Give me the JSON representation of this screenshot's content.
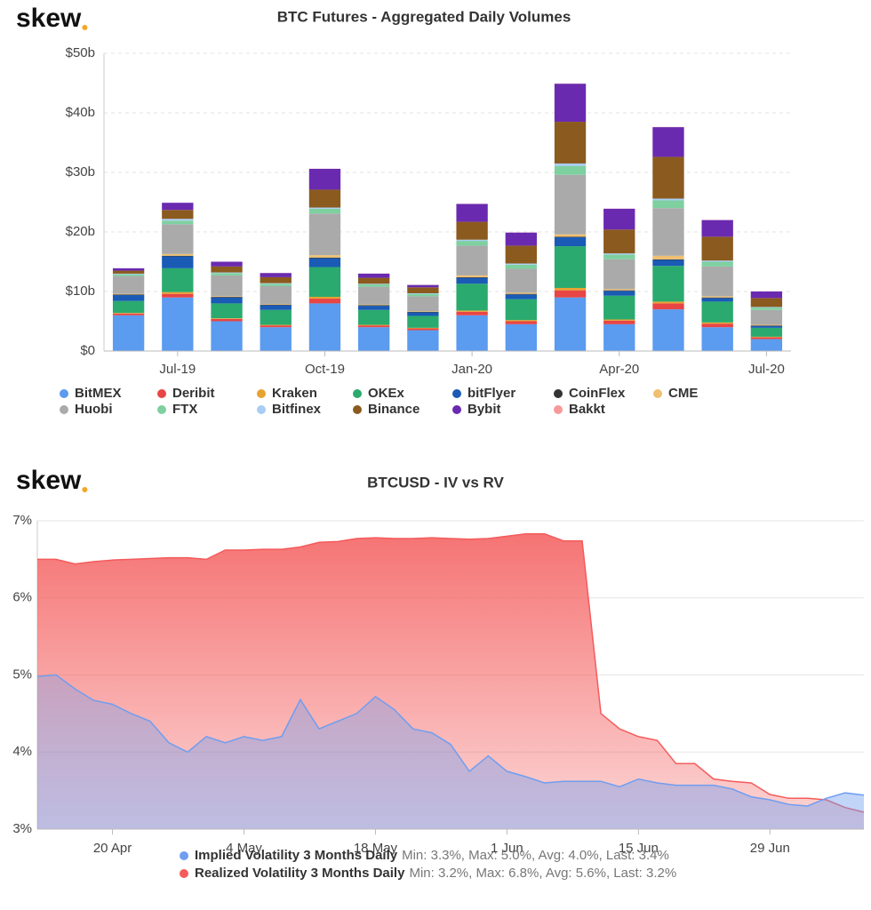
{
  "chart_data": [
    {
      "type": "bar",
      "logo": "skew",
      "title": "BTC Futures - Aggregated Daily Volumes",
      "categories": [
        null,
        "Jul-19",
        null,
        null,
        "Oct-19",
        null,
        null,
        "Jan-20",
        null,
        null,
        "Apr-20",
        null,
        null,
        "Jul-20"
      ],
      "ylim": [
        0,
        50
      ],
      "yticks": [
        {
          "value": 0,
          "label": "$0"
        },
        {
          "value": 10,
          "label": "$10b"
        },
        {
          "value": 20,
          "label": "$20b"
        },
        {
          "value": 30,
          "label": "$30b"
        },
        {
          "value": 40,
          "label": "$40b"
        },
        {
          "value": 50,
          "label": "$50b"
        }
      ],
      "grid": true,
      "series": [
        {
          "name": "BitMEX",
          "color": "#5b9bf0",
          "values": [
            6,
            9,
            5,
            4,
            8,
            4,
            3.5,
            6,
            4.5,
            9,
            4.5,
            7,
            4,
            2
          ]
        },
        {
          "name": "Deribit",
          "color": "#e84545",
          "values": [
            0.3,
            0.6,
            0.4,
            0.3,
            0.8,
            0.3,
            0.3,
            0.6,
            0.5,
            1.2,
            0.6,
            1,
            0.6,
            0.3
          ]
        },
        {
          "name": "Kraken",
          "color": "#e8a230",
          "values": [
            0.1,
            0.3,
            0.1,
            0.1,
            0.3,
            0.1,
            0.1,
            0.2,
            0.2,
            0.4,
            0.2,
            0.3,
            0.2,
            0.1
          ]
        },
        {
          "name": "OKEx",
          "color": "#2aaa6e",
          "values": [
            2,
            4,
            2.5,
            2.5,
            5,
            2.5,
            2,
            4.5,
            3.5,
            7,
            4,
            6,
            3.5,
            1.5
          ]
        },
        {
          "name": "bitFlyer",
          "color": "#1a5bb5",
          "values": [
            1,
            2,
            1,
            0.8,
            1.5,
            0.7,
            0.6,
            1,
            0.8,
            1.5,
            0.8,
            1,
            0.6,
            0.3
          ]
        },
        {
          "name": "CoinFlex",
          "color": "#333333",
          "values": [
            0.1,
            0.1,
            0.1,
            0.1,
            0.1,
            0.1,
            0.1,
            0.1,
            0.1,
            0.1,
            0.1,
            0.1,
            0.1,
            0.1
          ]
        },
        {
          "name": "CME",
          "color": "#f0c070",
          "values": [
            0.1,
            0.3,
            0.1,
            0.1,
            0.4,
            0.1,
            0.1,
            0.3,
            0.2,
            0.4,
            0.2,
            0.6,
            0.2,
            0.1
          ]
        },
        {
          "name": "Huobi",
          "color": "#aaaaaa",
          "values": [
            3,
            5,
            3.5,
            3,
            7,
            3,
            2.5,
            5,
            4,
            10,
            5,
            8,
            5,
            2.5
          ]
        },
        {
          "name": "FTX",
          "color": "#7fd0a0",
          "values": [
            0.3,
            0.6,
            0.4,
            0.4,
            0.8,
            0.4,
            0.4,
            0.8,
            0.7,
            1.5,
            0.8,
            1.3,
            0.8,
            0.4
          ]
        },
        {
          "name": "Bitfinex",
          "color": "#a9cdf5",
          "values": [
            0.1,
            0.3,
            0.1,
            0.1,
            0.2,
            0.1,
            0.1,
            0.2,
            0.2,
            0.4,
            0.2,
            0.3,
            0.2,
            0.1
          ]
        },
        {
          "name": "Binance",
          "color": "#8b5a1e",
          "values": [
            0.5,
            1.5,
            1,
            1,
            3,
            1,
            1,
            3,
            3,
            7,
            4,
            7,
            4,
            1.5
          ]
        },
        {
          "name": "Bybit",
          "color": "#6a2ab0",
          "values": [
            0.4,
            1.2,
            0.8,
            0.7,
            3.5,
            0.7,
            0.4,
            3,
            2.2,
            6.4,
            3.5,
            5,
            2.8,
            1.1
          ]
        },
        {
          "name": "Bakkt",
          "color": "#f59a9a",
          "values": [
            0,
            0,
            0,
            0.01,
            0.02,
            0.01,
            0.01,
            0.02,
            0.02,
            0.03,
            0.02,
            0.03,
            0.02,
            0.01
          ]
        }
      ]
    },
    {
      "type": "area",
      "logo": "skew",
      "title": "BTCUSD - IV vs RV",
      "categories": [
        null,
        null,
        null,
        null,
        "20 Apr",
        null,
        null,
        null,
        null,
        null,
        null,
        "4 May",
        null,
        null,
        null,
        null,
        null,
        null,
        "18 May",
        null,
        null,
        null,
        null,
        null,
        null,
        "1 Jun",
        null,
        null,
        null,
        null,
        null,
        null,
        "15 Jun",
        null,
        null,
        null,
        null,
        null,
        null,
        "29 Jun",
        null,
        null,
        null,
        null,
        null
      ],
      "ylim": [
        3,
        7
      ],
      "yticks": [
        {
          "value": 3,
          "label": "3%"
        },
        {
          "value": 4,
          "label": "4%"
        },
        {
          "value": 5,
          "label": "5%"
        },
        {
          "value": 6,
          "label": "6%"
        },
        {
          "value": 7,
          "label": "7%"
        }
      ],
      "grid": true,
      "series": [
        {
          "name": "Realized Volatility 3 Months Daily",
          "stats": "Min: 3.2%, Max: 6.8%, Avg: 5.6%, Last: 3.2%",
          "color": "#f45b5b",
          "values": [
            6.5,
            6.5,
            6.44,
            6.47,
            6.49,
            6.5,
            6.51,
            6.52,
            6.52,
            6.5,
            6.62,
            6.62,
            6.63,
            6.63,
            6.66,
            6.72,
            6.73,
            6.77,
            6.78,
            6.77,
            6.77,
            6.78,
            6.77,
            6.76,
            6.77,
            6.8,
            6.83,
            6.83,
            6.74,
            6.74,
            4.5,
            4.3,
            4.2,
            4.15,
            3.85,
            3.85,
            3.65,
            3.62,
            3.6,
            3.45,
            3.4,
            3.4,
            3.38,
            3.28,
            3.22
          ]
        },
        {
          "name": "Implied Volatility 3 Months Daily",
          "stats": "Min: 3.3%, Max: 5.0%, Avg: 4.0%, Last: 3.4%",
          "color": "#6f9ef0",
          "values": [
            4.98,
            5.0,
            4.82,
            4.67,
            4.62,
            4.5,
            4.4,
            4.12,
            4.0,
            4.2,
            4.12,
            4.2,
            4.15,
            4.2,
            4.68,
            4.3,
            4.4,
            4.5,
            4.72,
            4.55,
            4.3,
            4.25,
            4.1,
            3.75,
            3.95,
            3.75,
            3.68,
            3.6,
            3.62,
            3.62,
            3.62,
            3.55,
            3.65,
            3.6,
            3.57,
            3.57,
            3.57,
            3.52,
            3.42,
            3.38,
            3.32,
            3.3,
            3.4,
            3.47,
            3.44
          ]
        }
      ]
    }
  ]
}
